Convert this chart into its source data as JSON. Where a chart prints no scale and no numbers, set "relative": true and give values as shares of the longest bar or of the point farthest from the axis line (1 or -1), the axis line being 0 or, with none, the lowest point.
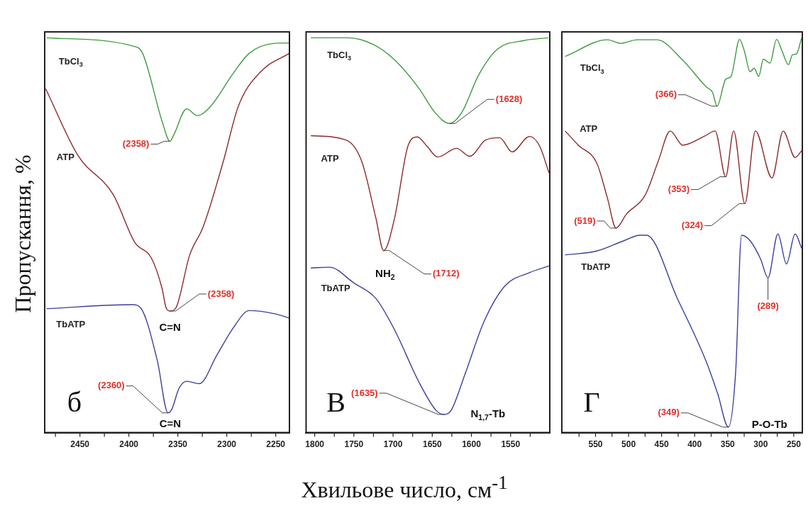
{
  "chart_data": [
    {
      "type": "line",
      "relative": true,
      "ylabel": "Пропускання, %",
      "xlim": [
        2486,
        2236
      ],
      "xticks": [
        {
          "value": 2475,
          "label": null
        },
        2450,
        {
          "value": 2425,
          "label": null
        },
        2400,
        {
          "value": 2375,
          "label": null
        },
        2350,
        {
          "value": 2325,
          "label": null
        },
        2300,
        {
          "value": 2275,
          "label": null
        },
        2250
      ],
      "tick_labels": "x",
      "grid": false,
      "legend": false,
      "marker": "none",
      "line_style": "solid",
      "series": [
        {
          "name": "TbCl$_{3}$",
          "color": "#3d9a3d",
          "x": [
            2484,
            2394,
            2386,
            2366,
            2358,
            2354,
            2341,
            2330,
            2316,
            2294,
            2277,
            2251,
            2236
          ],
          "values": [
            1.0,
            0.978,
            0.961,
            0.788,
            0.738,
            0.755,
            0.82,
            0.803,
            0.828,
            0.908,
            0.961,
            0.986,
            0.987
          ]
        },
        {
          "name": "ATP",
          "color": "#8b2b2b",
          "x": [
            2485,
            2452,
            2416,
            2394,
            2377,
            2366,
            2362,
            2358,
            2352,
            2338,
            2324,
            2304,
            2288,
            2265,
            2236
          ],
          "values": [
            0.871,
            0.702,
            0.603,
            0.482,
            0.442,
            0.364,
            0.316,
            0.308,
            0.316,
            0.449,
            0.522,
            0.683,
            0.828,
            0.915,
            0.961
          ]
        },
        {
          "name": "TbATP",
          "color": "#3a3f9e",
          "x": [
            2484,
            2396,
            2388,
            2371,
            2360,
            2356,
            2349,
            2341,
            2328,
            2310,
            2294,
            2277,
            2251,
            2236
          ],
          "values": [
            0.314,
            0.324,
            0.316,
            0.183,
            0.05,
            0.06,
            0.111,
            0.13,
            0.124,
            0.197,
            0.263,
            0.309,
            0.301,
            0.29
          ]
        }
      ],
      "annotations": [
        {
          "text": "(2358)",
          "x": 2358,
          "y": 0.738
        },
        {
          "text": "(2358)",
          "x": 2358,
          "y": 0.308
        },
        {
          "text": "C=N",
          "x": 2358,
          "y": 0.308
        },
        {
          "text": "(2360)",
          "x": 2360,
          "y": 0.05
        },
        {
          "text": "C=N",
          "x": 2360,
          "y": 0.05
        },
        "б"
      ]
    },
    {
      "type": "line",
      "relative": true,
      "xlabel": "Хвильове число, см$^{-1}$",
      "xlim": [
        1811,
        1500
      ],
      "xticks": [
        1800,
        {
          "value": 1775,
          "label": null
        },
        1750,
        {
          "value": 1725,
          "label": null
        },
        1700,
        {
          "value": 1675,
          "label": null
        },
        1650,
        {
          "value": 1625,
          "label": null
        },
        1600,
        {
          "value": 1575,
          "label": null
        },
        1550,
        {
          "value": 1525,
          "label": null
        }
      ],
      "tick_labels": "x",
      "grid": false,
      "legend": false,
      "marker": "none",
      "line_style": "solid",
      "series": [
        {
          "name": "TbCl$_{3}$",
          "color": "#3d9a3d",
          "x": [
            1805,
            1757,
            1725,
            1698,
            1667,
            1647,
            1628,
            1612,
            1591,
            1567,
            1533,
            1502
          ],
          "values": [
            1.0,
            1.0,
            0.983,
            0.944,
            0.872,
            0.812,
            0.783,
            0.812,
            0.905,
            0.971,
            0.993,
            1.0
          ]
        },
        {
          "name": "ATP",
          "color": "#8b2b2b",
          "x": [
            1805,
            1760,
            1740,
            1722,
            1712,
            1698,
            1681,
            1669,
            1657,
            1643,
            1619,
            1602,
            1582,
            1564,
            1548,
            1526,
            1513,
            1501
          ],
          "values": [
            0.752,
            0.741,
            0.687,
            0.544,
            0.461,
            0.544,
            0.726,
            0.749,
            0.726,
            0.698,
            0.72,
            0.7,
            0.741,
            0.747,
            0.711,
            0.75,
            0.726,
            0.658
          ]
        },
        {
          "name": "TbATP",
          "color": "#3a3f9e",
          "x": [
            1805,
            1781,
            1750,
            1722,
            1698,
            1667,
            1645,
            1635,
            1626,
            1608,
            1584,
            1557,
            1526,
            1501
          ],
          "values": [
            0.417,
            0.419,
            0.379,
            0.34,
            0.26,
            0.128,
            0.056,
            0.046,
            0.056,
            0.149,
            0.281,
            0.372,
            0.405,
            0.422
          ]
        }
      ],
      "annotations": [
        {
          "text": "(1628)",
          "x": 1628,
          "y": 0.783
        },
        {
          "text": "NH$_{2}$",
          "x": 1712,
          "y": 0.461
        },
        {
          "text": "(1712)",
          "x": 1712,
          "y": 0.461
        },
        {
          "text": "(1635)",
          "x": 1635,
          "y": 0.046
        },
        {
          "text": "N$_{1,7}$-Tb",
          "x": 1635,
          "y": 0.046
        },
        "В"
      ]
    },
    {
      "type": "line",
      "relative": true,
      "xlim": [
        601,
        237
      ],
      "xticks": [
        {
          "value": 575,
          "label": null
        },
        550,
        {
          "value": 525,
          "label": null
        },
        500,
        {
          "value": 475,
          "label": null
        },
        450,
        {
          "value": 425,
          "label": null
        },
        400,
        {
          "value": 375,
          "label": null
        },
        350,
        {
          "value": 325,
          "label": null
        },
        300,
        {
          "value": 275,
          "label": null
        },
        250
      ],
      "tick_labels": "x",
      "grid": false,
      "legend": false,
      "marker": "none",
      "line_style": "solid",
      "series": [
        {
          "name": "TbCl$_{3}$",
          "color": "#3d9a3d",
          "x": [
            596,
            532,
            512,
            487,
            457,
            418,
            382,
            373,
            366,
            353,
            345,
            332,
            325,
            316,
            310,
            303,
            296,
            286,
            276,
            268,
            258,
            252,
            246,
            238
          ],
          "values": [
            0.953,
            0.995,
            0.986,
            0.995,
            0.995,
            0.943,
            0.875,
            0.862,
            0.827,
            0.895,
            0.902,
            0.996,
            0.968,
            0.914,
            0.923,
            0.902,
            0.946,
            0.936,
            0.996,
            0.968,
            0.932,
            0.957,
            0.959,
            1.0
          ]
        },
        {
          "name": "ATP",
          "color": "#8b2b2b",
          "x": [
            596,
            576,
            548,
            532,
            519,
            503,
            475,
            455,
            437,
            418,
            385,
            369,
            353,
            341,
            324,
            308,
            283,
            266,
            248,
            238
          ],
          "values": [
            0.764,
            0.728,
            0.682,
            0.594,
            0.518,
            0.554,
            0.601,
            0.688,
            0.764,
            0.728,
            0.751,
            0.764,
            0.648,
            0.764,
            0.58,
            0.764,
            0.645,
            0.764,
            0.697,
            0.714
          ]
        },
        {
          "name": "TbATP",
          "color": "#3a3f9e",
          "x": [
            596,
            548,
            507,
            483,
            473,
            426,
            382,
            365,
            349,
            338,
            329,
            316,
            300,
            289,
            274,
            261,
            248,
            238
          ],
          "values": [
            0.45,
            0.46,
            0.486,
            0.5,
            0.5,
            0.339,
            0.178,
            0.098,
            0.014,
            0.152,
            0.5,
            0.486,
            0.439,
            0.392,
            0.503,
            0.427,
            0.503,
            0.467
          ]
        }
      ],
      "annotations": [
        {
          "text": "(366)",
          "x": 366,
          "y": 0.827
        },
        {
          "text": "(519)",
          "x": 519,
          "y": 0.518
        },
        {
          "text": "(353)",
          "x": 353,
          "y": 0.648
        },
        {
          "text": "(324)",
          "x": 324,
          "y": 0.58
        },
        {
          "text": "(289)",
          "x": 289,
          "y": 0.392
        },
        {
          "text": "(349)",
          "x": 349,
          "y": 0.014
        },
        {
          "text": "P-O-Tb",
          "x": 349,
          "y": 0.014
        },
        "Г"
      ]
    }
  ]
}
